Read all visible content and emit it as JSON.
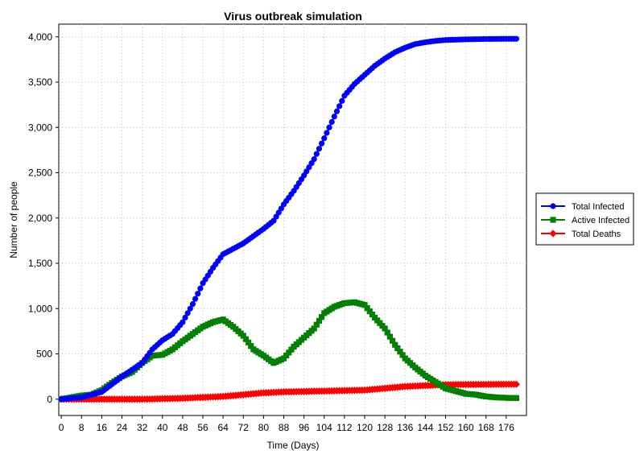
{
  "chart_data": {
    "type": "line",
    "title": "Virus outbreak simulation",
    "xlabel": "Time (Days)",
    "ylabel": "Number of people",
    "xlim": [
      -1,
      184
    ],
    "ylim": [
      -180,
      4140
    ],
    "x_ticks": [
      0,
      8,
      16,
      24,
      32,
      40,
      48,
      56,
      64,
      72,
      80,
      88,
      96,
      104,
      112,
      120,
      128,
      136,
      144,
      152,
      160,
      168,
      176
    ],
    "y_ticks": [
      0,
      500,
      1000,
      1500,
      2000,
      2500,
      3000,
      3500,
      4000
    ],
    "y_tick_labels": [
      "0",
      "500",
      "1,000",
      "1,500",
      "2,000",
      "2,500",
      "3,000",
      "3,500",
      "4,000"
    ],
    "grid": true,
    "legend_position": "right",
    "series": [
      {
        "name": "Total Infected",
        "color": "#0000ff",
        "marker": "circle",
        "points": [
          [
            0,
            0
          ],
          [
            8,
            20
          ],
          [
            16,
            80
          ],
          [
            24,
            250
          ],
          [
            32,
            400
          ],
          [
            36,
            550
          ],
          [
            40,
            650
          ],
          [
            44,
            720
          ],
          [
            48,
            850
          ],
          [
            52,
            1050
          ],
          [
            56,
            1280
          ],
          [
            60,
            1450
          ],
          [
            64,
            1600
          ],
          [
            68,
            1660
          ],
          [
            72,
            1720
          ],
          [
            76,
            1800
          ],
          [
            80,
            1880
          ],
          [
            84,
            1970
          ],
          [
            88,
            2150
          ],
          [
            92,
            2300
          ],
          [
            96,
            2470
          ],
          [
            100,
            2650
          ],
          [
            104,
            2880
          ],
          [
            108,
            3120
          ],
          [
            112,
            3350
          ],
          [
            116,
            3480
          ],
          [
            120,
            3580
          ],
          [
            124,
            3680
          ],
          [
            128,
            3760
          ],
          [
            132,
            3830
          ],
          [
            136,
            3880
          ],
          [
            140,
            3920
          ],
          [
            144,
            3940
          ],
          [
            148,
            3955
          ],
          [
            152,
            3965
          ],
          [
            160,
            3972
          ],
          [
            168,
            3976
          ],
          [
            176,
            3978
          ],
          [
            180,
            3978
          ]
        ]
      },
      {
        "name": "Active Infected",
        "color": "#008000",
        "marker": "square",
        "points": [
          [
            0,
            0
          ],
          [
            4,
            20
          ],
          [
            8,
            40
          ],
          [
            12,
            50
          ],
          [
            16,
            100
          ],
          [
            20,
            180
          ],
          [
            24,
            250
          ],
          [
            28,
            300
          ],
          [
            32,
            400
          ],
          [
            36,
            480
          ],
          [
            40,
            490
          ],
          [
            44,
            550
          ],
          [
            48,
            640
          ],
          [
            52,
            720
          ],
          [
            56,
            800
          ],
          [
            60,
            850
          ],
          [
            64,
            880
          ],
          [
            68,
            800
          ],
          [
            72,
            700
          ],
          [
            76,
            550
          ],
          [
            80,
            480
          ],
          [
            84,
            400
          ],
          [
            88,
            450
          ],
          [
            92,
            580
          ],
          [
            96,
            680
          ],
          [
            100,
            780
          ],
          [
            104,
            950
          ],
          [
            108,
            1020
          ],
          [
            112,
            1060
          ],
          [
            116,
            1070
          ],
          [
            120,
            1040
          ],
          [
            124,
            900
          ],
          [
            128,
            780
          ],
          [
            132,
            600
          ],
          [
            136,
            450
          ],
          [
            140,
            350
          ],
          [
            144,
            260
          ],
          [
            148,
            190
          ],
          [
            152,
            120
          ],
          [
            156,
            90
          ],
          [
            160,
            60
          ],
          [
            164,
            50
          ],
          [
            168,
            30
          ],
          [
            172,
            20
          ],
          [
            176,
            15
          ],
          [
            180,
            12
          ]
        ]
      },
      {
        "name": "Total Deaths",
        "color": "#ff0000",
        "marker": "diamond",
        "points": [
          [
            0,
            0
          ],
          [
            16,
            0
          ],
          [
            32,
            0
          ],
          [
            48,
            10
          ],
          [
            56,
            20
          ],
          [
            64,
            30
          ],
          [
            72,
            50
          ],
          [
            80,
            70
          ],
          [
            88,
            80
          ],
          [
            96,
            85
          ],
          [
            104,
            90
          ],
          [
            112,
            95
          ],
          [
            120,
            100
          ],
          [
            128,
            120
          ],
          [
            136,
            140
          ],
          [
            144,
            150
          ],
          [
            152,
            160
          ],
          [
            160,
            162
          ],
          [
            168,
            163
          ],
          [
            176,
            165
          ],
          [
            180,
            165
          ]
        ]
      }
    ]
  }
}
